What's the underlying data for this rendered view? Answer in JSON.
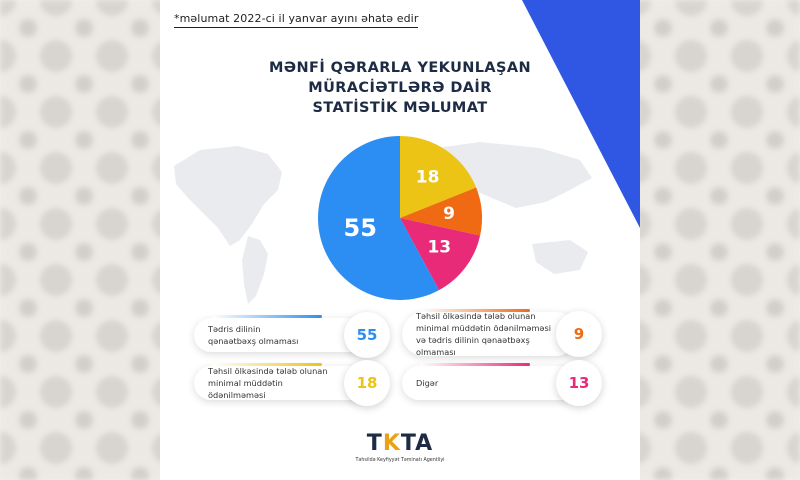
{
  "note": "*məlumat 2022-ci il yanvar ayını əhatə edir",
  "title": [
    "MƏNFİ QƏRARLA YEKUNLAŞAN",
    "MÜRACİƏTLƏRƏ DAİR",
    "STATİSTİK MƏLUMAT"
  ],
  "colors": {
    "blue": "#2c8ef2",
    "yellow": "#ecc416",
    "orange": "#f06a14",
    "pink": "#e92a78",
    "corner": "#2f57e3"
  },
  "chart_data": {
    "type": "pie",
    "categories": [
      "Tədris dilinin qənaətbəxş olmaması",
      "Təhsil ölkəsində tələb olunan minimal müddətin ödənilməməsi",
      "Təhsil ölkəsində tələb olunan minimal müddətin ödənilməməsi və tədris dilinin qənaətbəxş olmaması",
      "Digər"
    ],
    "values": [
      55,
      18,
      9,
      13
    ],
    "title": "MƏNFİ QƏRARLA YEKUNLAŞAN MÜRACİƏTLƏRƏ DAİR STATİSTİK MƏLUMAT"
  },
  "legend": [
    {
      "label_line1": "Tədris dilinin",
      "label_line2": "qənaətbəxş olmaması",
      "label_line3": "",
      "value": "55",
      "color": "#2c8ef2"
    },
    {
      "label_line1": "Təhsil ölkəsində tələb olunan",
      "label_line2": "minimal müddətin ödənilməməsi",
      "label_line3": "və tədris dilinin qənaətbəxş olmaması",
      "value": "9",
      "color": "#f06a14"
    },
    {
      "label_line1": "Təhsil ölkəsində tələb olunan",
      "label_line2": "minimal müddətin ödənilməməsi",
      "label_line3": "",
      "value": "18",
      "color": "#ecc416"
    },
    {
      "label_line1": "Digər",
      "label_line2": "",
      "label_line3": "",
      "value": "13",
      "color": "#e92a78"
    }
  ],
  "logo": {
    "mark_left": "T",
    "mark_accent": "K",
    "mark_right": "TA",
    "subtitle": "Təhsildə Keyfiyyət Təminatı Agentliyi"
  }
}
